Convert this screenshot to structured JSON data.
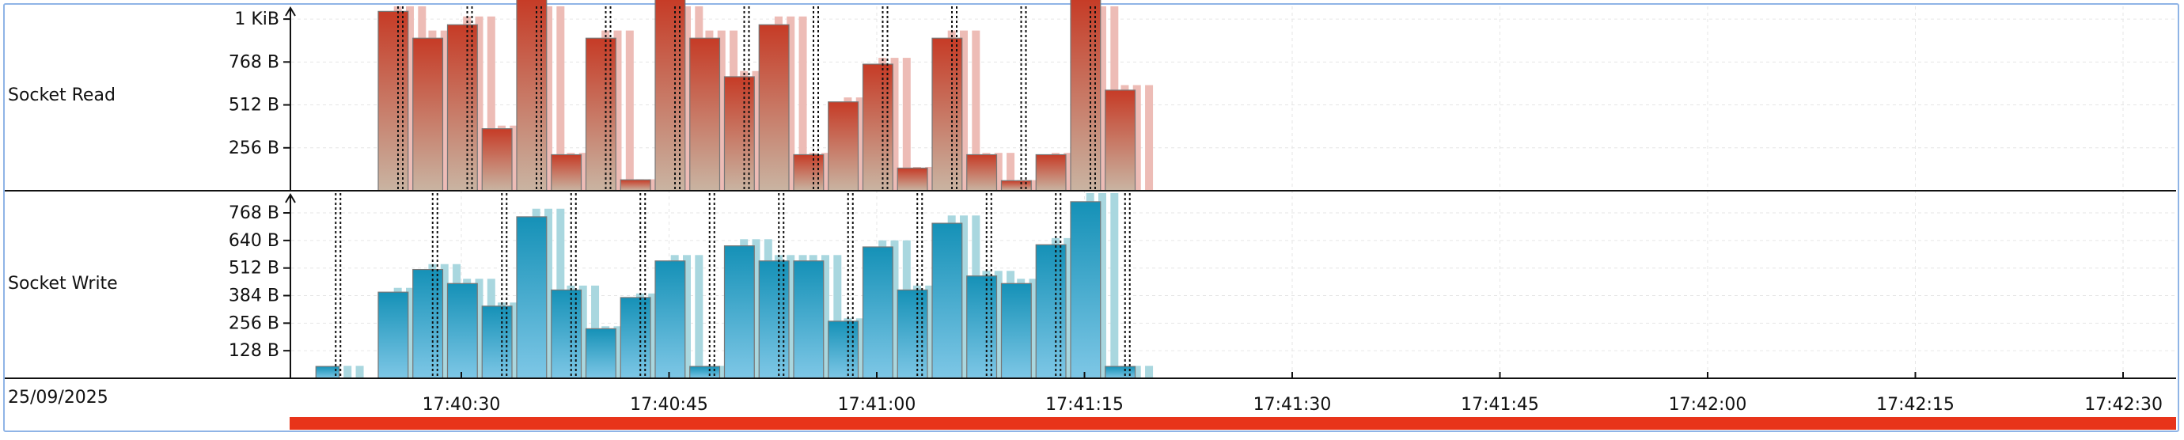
{
  "date": "25/09/2025",
  "colors": {
    "read_top": "#c63b26",
    "read_bottom": "#c9b4a2",
    "read_ghost": "#edbcb6",
    "write_top": "#1591b7",
    "write_bottom": "#7ec7e6",
    "write_ghost": "#a9d7df",
    "timeline_bar": "#e8341a",
    "frame": "#8fb4e6",
    "grid": "#e6e6e6"
  },
  "chart_data": [
    {
      "type": "bar",
      "name": "Socket Read",
      "unit": "B",
      "ylim": [
        0,
        1100
      ],
      "yticks": [
        {
          "value": 256,
          "label": "256 B"
        },
        {
          "value": 512,
          "label": "512 B"
        },
        {
          "value": 768,
          "label": "768 B"
        },
        {
          "value": 1024,
          "label": "1 KiB"
        }
      ],
      "bin_seconds": 2.5,
      "bars": [
        {
          "t": "17:40:24.0",
          "value": 1070
        },
        {
          "t": "17:40:26.5",
          "value": 910
        },
        {
          "t": "17:40:29.0",
          "value": 990
        },
        {
          "t": "17:40:31.5",
          "value": 370
        },
        {
          "t": "17:40:34.0",
          "value": 1145
        },
        {
          "t": "17:40:36.5",
          "value": 215
        },
        {
          "t": "17:40:39.0",
          "value": 910
        },
        {
          "t": "17:40:41.5",
          "value": 65
        },
        {
          "t": "17:40:44.0",
          "value": 1145
        },
        {
          "t": "17:40:46.5",
          "value": 910
        },
        {
          "t": "17:40:49.0",
          "value": 680
        },
        {
          "t": "17:40:51.5",
          "value": 990
        },
        {
          "t": "17:40:54.0",
          "value": 215
        },
        {
          "t": "17:40:56.5",
          "value": 530
        },
        {
          "t": "17:40:59.0",
          "value": 755
        },
        {
          "t": "17:41:01.5",
          "value": 135
        },
        {
          "t": "17:41:04.0",
          "value": 910
        },
        {
          "t": "17:41:06.5",
          "value": 215
        },
        {
          "t": "17:41:09.0",
          "value": 60
        },
        {
          "t": "17:41:11.5",
          "value": 215
        },
        {
          "t": "17:41:14.0",
          "value": 1145
        },
        {
          "t": "17:41:16.5",
          "value": 600
        }
      ]
    },
    {
      "type": "bar",
      "name": "Socket Write",
      "unit": "B",
      "ylim": [
        0,
        860
      ],
      "yticks": [
        {
          "value": 128,
          "label": "128 B"
        },
        {
          "value": 256,
          "label": "256 B"
        },
        {
          "value": 384,
          "label": "384 B"
        },
        {
          "value": 512,
          "label": "512 B"
        },
        {
          "value": 640,
          "label": "640 B"
        },
        {
          "value": 768,
          "label": "768 B"
        }
      ],
      "bin_seconds": 2.5,
      "bars": [
        {
          "t": "17:40:19.5",
          "value": 55
        },
        {
          "t": "17:40:24.0",
          "value": 400
        },
        {
          "t": "17:40:26.5",
          "value": 505
        },
        {
          "t": "17:40:29.0",
          "value": 440
        },
        {
          "t": "17:40:31.5",
          "value": 335
        },
        {
          "t": "17:40:34.0",
          "value": 750
        },
        {
          "t": "17:40:36.5",
          "value": 410
        },
        {
          "t": "17:40:39.0",
          "value": 230
        },
        {
          "t": "17:40:41.5",
          "value": 375
        },
        {
          "t": "17:40:44.0",
          "value": 545
        },
        {
          "t": "17:40:46.5",
          "value": 55
        },
        {
          "t": "17:40:49.0",
          "value": 615
        },
        {
          "t": "17:40:51.5",
          "value": 545
        },
        {
          "t": "17:40:54.0",
          "value": 545
        },
        {
          "t": "17:40:56.5",
          "value": 265
        },
        {
          "t": "17:40:59.0",
          "value": 610
        },
        {
          "t": "17:41:01.5",
          "value": 410
        },
        {
          "t": "17:41:04.0",
          "value": 720
        },
        {
          "t": "17:41:06.5",
          "value": 475
        },
        {
          "t": "17:41:09.0",
          "value": 440
        },
        {
          "t": "17:41:11.5",
          "value": 620
        },
        {
          "t": "17:41:14.0",
          "value": 820
        },
        {
          "t": "17:41:16.5",
          "value": 55
        }
      ]
    }
  ],
  "time_axis": {
    "ticks": [
      "17:40:30",
      "17:40:45",
      "17:41:00",
      "17:41:15",
      "17:41:30",
      "17:41:45",
      "17:42:00",
      "17:42:15",
      "17:42:30"
    ]
  }
}
